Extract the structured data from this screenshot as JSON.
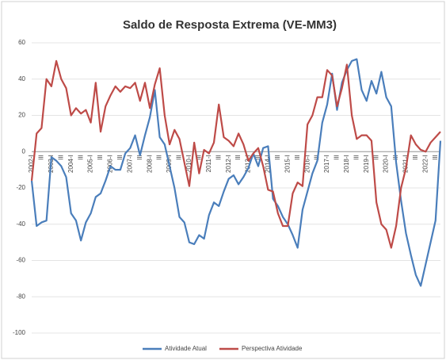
{
  "chart_data": {
    "type": "line",
    "title": "Saldo de Resposta Extrema (VE-MM3)",
    "categories": [
      "2002-I",
      null,
      "III",
      null,
      "2003-I",
      null,
      "III",
      null,
      "2004-I",
      null,
      "III",
      null,
      "2005-I",
      null,
      "III",
      null,
      "2006-I",
      null,
      "III",
      null,
      "2007-I",
      null,
      "III",
      null,
      "2008-I",
      null,
      "III",
      null,
      "2009-I",
      null,
      "III",
      null,
      "2010-I",
      null,
      "III",
      null,
      "2011-I",
      null,
      "III",
      null,
      "2012-I",
      null,
      "III",
      null,
      "2013-I",
      null,
      "III",
      null,
      "2014-I",
      null,
      "III",
      null,
      "2015-I",
      null,
      "III",
      null,
      "2016-I",
      null,
      "III",
      null,
      "2017-I",
      null,
      "III",
      null,
      "2018-I",
      null,
      "III",
      null,
      "2019-I",
      null,
      "III",
      null,
      "2020-I",
      null,
      "III",
      null,
      "2021-I",
      null,
      "III",
      null,
      "2022-I",
      null,
      "III",
      null
    ],
    "series": [
      {
        "name": "Atividade Atual",
        "color": "#4a7ebb",
        "values": [
          -16,
          -41,
          -39,
          -38,
          -3,
          -5,
          -8,
          -14,
          -34,
          -38,
          -49,
          -39,
          -34,
          -25,
          -23,
          -16,
          -8,
          -10,
          -10,
          -1,
          2,
          9,
          -2,
          9,
          19,
          34,
          8,
          4,
          -8,
          -20,
          -36,
          -39,
          -50,
          -51,
          -46,
          -48,
          -35,
          -28,
          -30,
          -22,
          -15,
          -13,
          -18,
          -14,
          -9,
          -1,
          -8,
          2,
          3,
          -26,
          -30,
          -36,
          -40,
          -46,
          -53,
          -32,
          -22,
          -12,
          -5,
          16,
          26,
          43,
          23,
          38,
          45,
          50,
          51,
          34,
          28,
          39,
          32,
          44,
          30,
          25,
          -6,
          -27,
          -45,
          -57,
          -68,
          -74,
          -62,
          -50,
          -38,
          6
        ]
      },
      {
        "name": "Perspectiva Atividade",
        "color": "#be4b48",
        "values": [
          -16,
          10,
          13,
          40,
          36,
          50,
          40,
          35,
          20,
          24,
          21,
          23,
          16,
          38,
          11,
          25,
          31,
          36,
          33,
          36,
          35,
          38,
          28,
          38,
          24,
          37,
          46,
          20,
          4,
          12,
          7,
          -6,
          -19,
          5,
          -12,
          1,
          -1,
          5,
          26,
          8,
          6,
          3,
          10,
          4,
          -5,
          -1,
          2,
          -8,
          -21,
          -22,
          -34,
          -41,
          -41,
          -23,
          -17,
          -19,
          15,
          20,
          30,
          30,
          45,
          42,
          25,
          35,
          48,
          20,
          7,
          9,
          9,
          6,
          -28,
          -40,
          -43,
          -53,
          -41,
          -20,
          -9,
          9,
          4,
          1,
          0,
          5,
          8,
          11
        ]
      }
    ],
    "ylim": [
      -100,
      60
    ],
    "yticks": [
      -100,
      -80,
      -60,
      -40,
      -20,
      0,
      20,
      40,
      60
    ],
    "legend": "bottom"
  }
}
